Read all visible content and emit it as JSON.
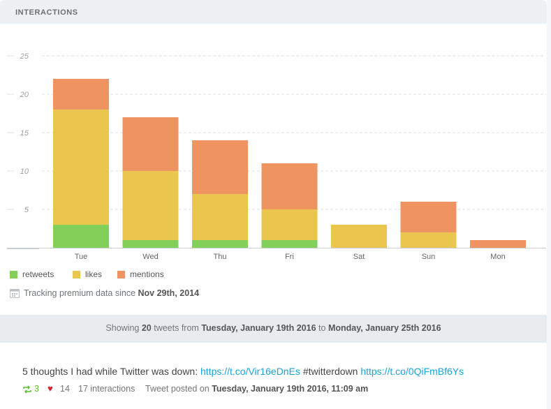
{
  "header": {
    "title": "INTERACTIONS"
  },
  "colors": {
    "retweets": "#82cf5a",
    "likes": "#ebc64f",
    "mentions": "#ee9460",
    "grid": "#dcdfe2",
    "tick_text": "#9aa0a6",
    "category_text": "#666666",
    "link": "#1aa3d8",
    "heart": "#d9202c",
    "retweet_icon": "#5fbf3b"
  },
  "chart_data": {
    "type": "bar",
    "stacked": true,
    "categories": [
      "Tue",
      "Wed",
      "Thu",
      "Fri",
      "Sat",
      "Sun",
      "Mon"
    ],
    "series": [
      {
        "name": "retweets",
        "values": [
          3,
          1,
          1,
          1,
          0,
          0,
          0
        ]
      },
      {
        "name": "likes",
        "values": [
          15,
          9,
          6,
          4,
          3,
          2,
          0
        ]
      },
      {
        "name": "mentions",
        "values": [
          4,
          7,
          7,
          6,
          0,
          4,
          1
        ]
      }
    ],
    "ylim": [
      0,
      25
    ],
    "yticks": [
      "5",
      "10",
      "15",
      "20",
      "25"
    ],
    "grid": true,
    "legend_position": "bottom-left"
  },
  "legend": [
    {
      "label": "retweets"
    },
    {
      "label": "likes"
    },
    {
      "label": "mentions"
    }
  ],
  "tracking": {
    "text": "Tracking premium data since",
    "date": "Nov 29th, 2014"
  },
  "showing": {
    "prefix": "Showing",
    "count": "20",
    "middle": "tweets from",
    "from": "Tuesday, January 19th 2016",
    "to_word": "to",
    "to": "Monday, January 25th 2016"
  },
  "tweet": {
    "text_before": "5 thoughts I had while Twitter was down: ",
    "link1": "https://t.co/Vir16eDnEs",
    "text_middle": " #twitterdown ",
    "link2": "https://t.co/0QiFmBf6Ys",
    "retweets": "3",
    "likes": "14",
    "interactions_count": "17",
    "interactions_label": "interactions",
    "posted_label": "Tweet posted on",
    "posted_date": "Tuesday, January 19th 2016, 11:09 am"
  }
}
